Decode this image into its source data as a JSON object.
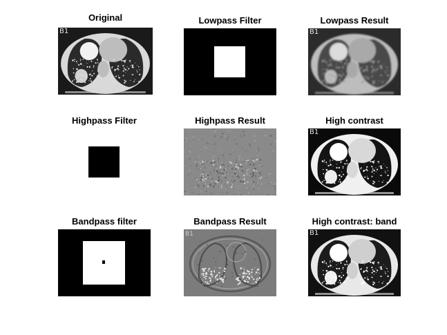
{
  "figure": {
    "panels": [
      {
        "id": "original",
        "title": "Original",
        "kind": "ct",
        "variant": "original",
        "corner_label": "B1"
      },
      {
        "id": "lowpass-filter",
        "title": "Lowpass Filter",
        "kind": "mask",
        "variant": "lowpass"
      },
      {
        "id": "lowpass-result",
        "title": "Lowpass Result",
        "kind": "ct",
        "variant": "blur",
        "corner_label": "B1"
      },
      {
        "id": "highpass-filter",
        "title": "Highpass Filter",
        "kind": "mask",
        "variant": "highpass"
      },
      {
        "id": "highpass-result",
        "title": "Highpass Result",
        "kind": "ct",
        "variant": "highpass"
      },
      {
        "id": "high-contrast",
        "title": "High contrast",
        "kind": "ct",
        "variant": "contrast",
        "corner_label": "B1"
      },
      {
        "id": "bandpass-filter",
        "title": "Bandpass filter",
        "kind": "mask",
        "variant": "bandpass"
      },
      {
        "id": "bandpass-result",
        "title": "Bandpass Result",
        "kind": "ct",
        "variant": "bandpass",
        "corner_label": "B1"
      },
      {
        "id": "high-contrast-band",
        "title": "High contrast: band",
        "kind": "ct",
        "variant": "contrast-band",
        "corner_label": "B1"
      }
    ]
  }
}
